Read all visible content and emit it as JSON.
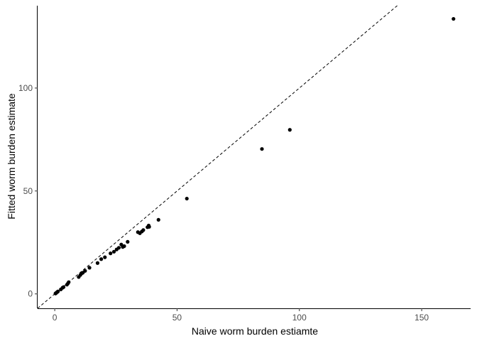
{
  "chart_data": {
    "type": "scatter",
    "title": "",
    "xlabel": "Naive worm burden estiamte",
    "ylabel": "Fitted worm burden estimate",
    "xlim": [
      -7,
      170
    ],
    "ylim": [
      -7,
      140
    ],
    "xticks": [
      0,
      50,
      100,
      150
    ],
    "yticks": [
      0,
      50,
      100
    ],
    "grid": false,
    "reference_line": {
      "type": "identity",
      "slope": 1,
      "intercept": 0,
      "style": "dashed"
    },
    "series": [
      {
        "points": [
          [
            0.3,
            0.2
          ],
          [
            0.6,
            0.5
          ],
          [
            1.0,
            0.9
          ],
          [
            1.3,
            1.2
          ],
          [
            2.5,
            2.2
          ],
          [
            3.2,
            3.0
          ],
          [
            3.6,
            3.3
          ],
          [
            5.0,
            4.5
          ],
          [
            5.4,
            5.1
          ],
          [
            5.7,
            5.7
          ],
          [
            9.8,
            8.2
          ],
          [
            10.5,
            9.2
          ],
          [
            11.0,
            10.0
          ],
          [
            11.5,
            10.3
          ],
          [
            12.4,
            11.2
          ],
          [
            14.2,
            12.7
          ],
          [
            17.5,
            15.0
          ],
          [
            19.0,
            16.9
          ],
          [
            20.5,
            17.8
          ],
          [
            22.8,
            19.7
          ],
          [
            24.2,
            20.5
          ],
          [
            25.3,
            21.6
          ],
          [
            26.2,
            22.4
          ],
          [
            27.2,
            24.0
          ],
          [
            27.8,
            22.8
          ],
          [
            28.4,
            23.2
          ],
          [
            29.8,
            25.3
          ],
          [
            34.0,
            30.0
          ],
          [
            34.8,
            29.5
          ],
          [
            35.6,
            30.3
          ],
          [
            36.2,
            31.0
          ],
          [
            37.9,
            32.4
          ],
          [
            38.4,
            33.2
          ],
          [
            38.6,
            32.6
          ],
          [
            42.4,
            36.0
          ],
          [
            54.0,
            46.3
          ],
          [
            84.7,
            70.4
          ],
          [
            96.1,
            79.7
          ],
          [
            163.0,
            133.6
          ]
        ]
      }
    ]
  }
}
